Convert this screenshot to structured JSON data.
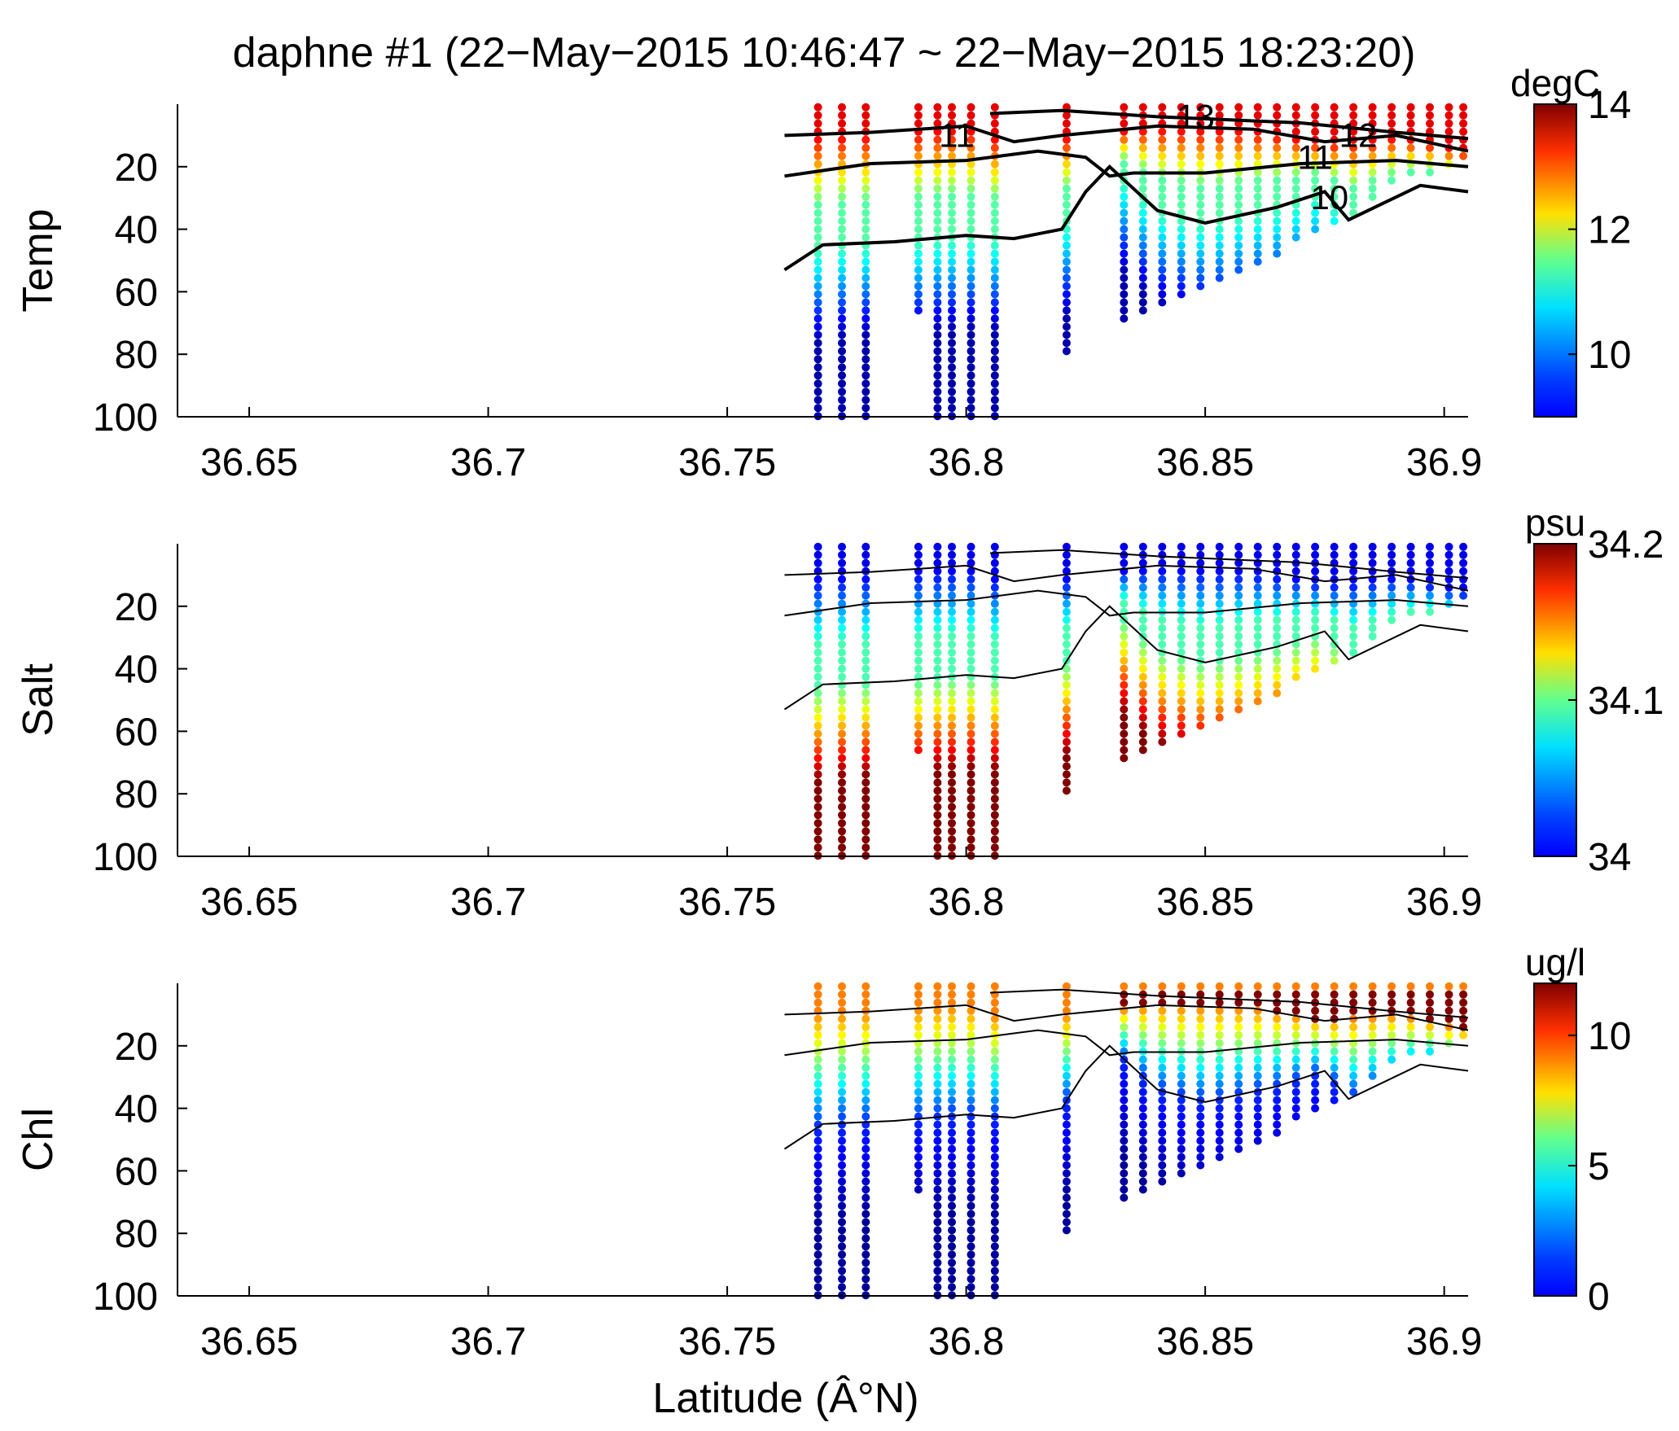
{
  "chart_data": {
    "title": "daphne #1 (22−May−2015 10:46:47 ~ 22−May−2015 18:23:20)",
    "xlabel": "Latitude (Â°N)",
    "xlim": [
      36.635,
      36.905
    ],
    "xticks": [
      "36.65",
      "36.7",
      "36.75",
      "36.8",
      "36.85",
      "36.9"
    ],
    "xtick_values": [
      36.65,
      36.7,
      36.75,
      36.8,
      36.85,
      36.9
    ],
    "ylim": [
      0,
      100
    ],
    "yticks": [
      "20",
      "40",
      "60",
      "80",
      "100"
    ],
    "ytick_values": [
      20,
      40,
      60,
      80,
      100
    ],
    "colormap": "jet",
    "panels": [
      {
        "type": "scatter",
        "ylabel": "Temp",
        "colorbar": {
          "unit": "degC",
          "min": 9,
          "max": 14,
          "ticks": [
            "10",
            "12",
            "14"
          ],
          "tick_values": [
            10,
            12,
            14
          ]
        },
        "surface": 13.5,
        "upper": 11.3,
        "deep": 9.2,
        "top_gradient": 1
      },
      {
        "type": "scatter",
        "ylabel": "Salt",
        "colorbar": {
          "unit": "psu",
          "min": 34,
          "max": 34.2,
          "ticks": [
            "34",
            "34.1",
            "34.2"
          ],
          "tick_values": [
            34,
            34.1,
            34.2
          ]
        },
        "surface": 34.02,
        "upper": 34.09,
        "deep": 34.2,
        "top_gradient": 0
      },
      {
        "type": "scatter",
        "ylabel": "Chl",
        "colorbar": {
          "unit": "ug/l",
          "min": 0,
          "max": 12,
          "ticks": [
            "0",
            "5",
            "10"
          ],
          "tick_values": [
            0,
            5,
            10
          ]
        },
        "surface": 9.0,
        "upper": 2.0,
        "deep": 0.3,
        "top_gradient": 2
      }
    ],
    "profiles": [
      {
        "lat": 36.769,
        "maxDepth": 100
      },
      {
        "lat": 36.774,
        "maxDepth": 100
      },
      {
        "lat": 36.779,
        "maxDepth": 100
      },
      {
        "lat": 36.79,
        "maxDepth": 68
      },
      {
        "lat": 36.794,
        "maxDepth": 100
      },
      {
        "lat": 36.797,
        "maxDepth": 100
      },
      {
        "lat": 36.801,
        "maxDepth": 100
      },
      {
        "lat": 36.806,
        "maxDepth": 100
      },
      {
        "lat": 36.821,
        "maxDepth": 80
      },
      {
        "lat": 36.833,
        "maxDepth": 70
      },
      {
        "lat": 36.837,
        "maxDepth": 68
      },
      {
        "lat": 36.841,
        "maxDepth": 66
      },
      {
        "lat": 36.845,
        "maxDepth": 63
      },
      {
        "lat": 36.849,
        "maxDepth": 60
      },
      {
        "lat": 36.853,
        "maxDepth": 57
      },
      {
        "lat": 36.857,
        "maxDepth": 54
      },
      {
        "lat": 36.861,
        "maxDepth": 51
      },
      {
        "lat": 36.865,
        "maxDepth": 48
      },
      {
        "lat": 36.869,
        "maxDepth": 45
      },
      {
        "lat": 36.873,
        "maxDepth": 42
      },
      {
        "lat": 36.877,
        "maxDepth": 39
      },
      {
        "lat": 36.881,
        "maxDepth": 36
      },
      {
        "lat": 36.885,
        "maxDepth": 30
      },
      {
        "lat": 36.889,
        "maxDepth": 27
      },
      {
        "lat": 36.893,
        "maxDepth": 24
      },
      {
        "lat": 36.897,
        "maxDepth": 22
      },
      {
        "lat": 36.901,
        "maxDepth": 20
      },
      {
        "lat": 36.904,
        "maxDepth": 18
      }
    ],
    "contours": [
      {
        "level": "13",
        "points": [
          [
            36.805,
            3
          ],
          [
            36.82,
            2
          ],
          [
            36.84,
            4
          ],
          [
            36.87,
            6
          ],
          [
            36.89,
            9
          ],
          [
            36.905,
            11
          ]
        ]
      },
      {
        "level": "12",
        "points": [
          [
            36.762,
            10
          ],
          [
            36.78,
            9
          ],
          [
            36.8,
            7
          ],
          [
            36.81,
            12
          ],
          [
            36.82,
            10
          ],
          [
            36.84,
            7
          ],
          [
            36.86,
            8
          ],
          [
            36.875,
            12
          ],
          [
            36.89,
            10
          ],
          [
            36.905,
            15
          ]
        ]
      },
      {
        "level": "11",
        "points": [
          [
            36.762,
            23
          ],
          [
            36.78,
            19
          ],
          [
            36.8,
            18
          ],
          [
            36.815,
            15
          ],
          [
            36.825,
            17
          ],
          [
            36.83,
            23
          ],
          [
            36.835,
            22
          ],
          [
            36.85,
            22
          ],
          [
            36.87,
            19
          ],
          [
            36.89,
            18
          ],
          [
            36.905,
            20
          ]
        ]
      },
      {
        "level": "10",
        "points": [
          [
            36.762,
            53
          ],
          [
            36.77,
            45
          ],
          [
            36.785,
            44
          ],
          [
            36.8,
            42
          ],
          [
            36.81,
            43
          ],
          [
            36.82,
            40
          ],
          [
            36.825,
            28
          ],
          [
            36.83,
            20
          ],
          [
            36.84,
            34
          ],
          [
            36.85,
            38
          ],
          [
            36.865,
            33
          ],
          [
            36.875,
            28
          ],
          [
            36.88,
            37
          ],
          [
            36.895,
            26
          ],
          [
            36.905,
            28
          ]
        ]
      }
    ],
    "contour_labels": [
      {
        "text": "11",
        "lat": 36.798,
        "depth": 10
      },
      {
        "text": "13",
        "lat": 36.848,
        "depth": 4
      },
      {
        "text": "12",
        "lat": 36.882,
        "depth": 10
      },
      {
        "text": "11",
        "lat": 36.873,
        "depth": 17
      },
      {
        "text": "10",
        "lat": 36.876,
        "depth": 30
      }
    ]
  }
}
